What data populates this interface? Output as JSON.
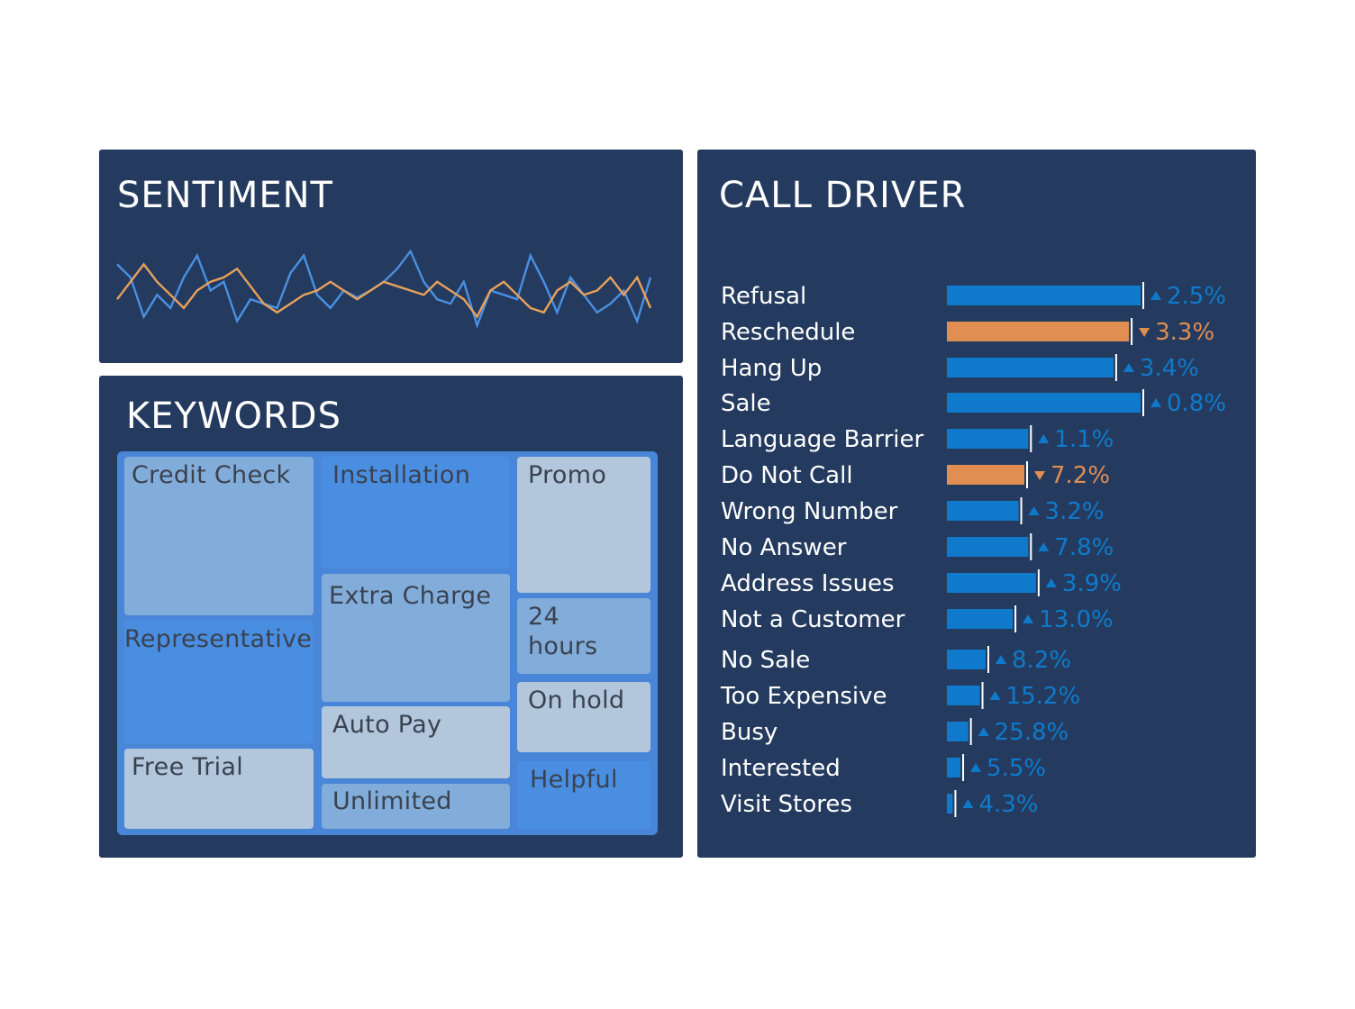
{
  "sentiment": {
    "title": "SENTIMENT",
    "colors": {
      "series_a": "#4a90e2",
      "series_b": "#e8a15a"
    }
  },
  "keywords": {
    "title": "KEYWORDS",
    "colors": {
      "dark": "#4a8ee2",
      "mid": "#82acd9",
      "light": "#b2c6dc"
    }
  },
  "call_driver": {
    "title": "CALL DRIVER",
    "colors": {
      "up": "#0f7acb",
      "down": "#e08e52",
      "label": "#ffffff"
    }
  },
  "chart_data": [
    {
      "type": "line",
      "title": "SENTIMENT",
      "x": [
        0,
        1,
        2,
        3,
        4,
        5,
        6,
        7,
        8,
        9,
        10,
        11,
        12,
        13,
        14,
        15,
        16,
        17,
        18,
        19,
        20,
        21,
        22,
        23,
        24,
        25,
        26,
        27,
        28,
        29,
        30,
        31,
        32,
        33,
        34,
        35,
        36,
        37,
        38,
        39,
        40
      ],
      "ylim": [
        0,
        10
      ],
      "grid": false,
      "series": [
        {
          "values": [
            8,
            6.5,
            2,
            4.5,
            3,
            6.5,
            9,
            5,
            6,
            1.5,
            4,
            3.5,
            3,
            7,
            9,
            4.5,
            3,
            5,
            4.2,
            5,
            6,
            7.5,
            9.5,
            6,
            4,
            3.5,
            6,
            1,
            5,
            4.5,
            4,
            9,
            6,
            2.5,
            6.5,
            4.5,
            2.5,
            3.5,
            5,
            1.5,
            6.5
          ]
        },
        {
          "values": [
            4,
            6,
            8,
            6,
            4.5,
            3,
            5,
            6,
            6.5,
            7.5,
            5.5,
            3.5,
            2.5,
            3.5,
            4.5,
            5,
            6,
            5,
            4,
            5,
            6,
            5.5,
            5,
            4.5,
            6,
            5,
            4,
            2,
            5,
            6,
            4.5,
            3,
            2.5,
            5,
            6,
            4.5,
            5,
            6.5,
            4.5,
            6.5,
            3
          ]
        }
      ]
    },
    {
      "type": "treemap",
      "title": "KEYWORDS",
      "items": [
        {
          "label": "Credit Check",
          "shade": "mid"
        },
        {
          "label": "Representative",
          "shade": "dark"
        },
        {
          "label": "Free Trial",
          "shade": "light"
        },
        {
          "label": "Installation",
          "shade": "dark"
        },
        {
          "label": "Extra Charge",
          "shade": "mid"
        },
        {
          "label": "Auto Pay",
          "shade": "light"
        },
        {
          "label": "Unlimited",
          "shade": "mid"
        },
        {
          "label": "Promo",
          "shade": "light"
        },
        {
          "label": "24\nhours",
          "shade": "mid"
        },
        {
          "label": "On hold",
          "shade": "light"
        },
        {
          "label": "Helpful",
          "shade": "dark"
        }
      ]
    },
    {
      "type": "bar",
      "orientation": "horizontal",
      "title": "CALL DRIVER",
      "xlim": [
        0,
        100
      ],
      "categories": [
        "Refusal",
        "Reschedule",
        "Hang Up",
        "Sale",
        "Language Barrier",
        "Do Not Call",
        "Wrong Number",
        "No Answer",
        "Address Issues",
        "Not a Customer",
        "No Sale",
        "Too Expensive",
        "Busy",
        "Interested",
        "Visit Stores"
      ],
      "values": [
        100,
        94,
        86,
        100,
        42,
        40,
        37,
        42,
        46,
        34,
        20,
        17,
        11,
        7,
        3
      ],
      "change_labels": [
        "2.5%",
        "3.3%",
        "3.4%",
        "0.8%",
        "1.1%",
        "7.2%",
        "3.2%",
        "7.8%",
        "3.9%",
        "13.0%",
        "8.2%",
        "15.2%",
        "25.8%",
        "5.5%",
        "4.3%"
      ],
      "directions": [
        "up",
        "down",
        "up",
        "up",
        "up",
        "down",
        "up",
        "up",
        "up",
        "up",
        "up",
        "up",
        "up",
        "up",
        "up"
      ]
    }
  ]
}
